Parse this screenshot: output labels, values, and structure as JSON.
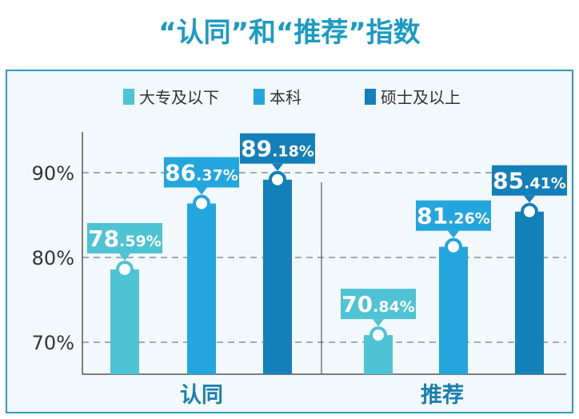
{
  "chart_data": {
    "type": "bar",
    "title": "“认同”和“推荐”指数",
    "categories": [
      "认同",
      "推荐"
    ],
    "series": [
      {
        "name": "大专及以下",
        "color": "#4dc3d3",
        "values": [
          78.59,
          70.84
        ]
      },
      {
        "name": "本科",
        "color": "#23a6dd",
        "values": [
          86.37,
          81.26
        ]
      },
      {
        "name": "硕士及以上",
        "color": "#1480b9",
        "values": [
          89.18,
          85.41
        ]
      }
    ],
    "value_labels": [
      [
        "78.59%",
        "70.84%"
      ],
      [
        "86.37%",
        "81.26%"
      ],
      [
        "89.18%",
        "85.41%"
      ]
    ],
    "yticks": [
      {
        "value": 70,
        "label": "70%"
      },
      {
        "value": 80,
        "label": "80%"
      },
      {
        "value": 90,
        "label": "90%"
      }
    ],
    "ylim": [
      67.5,
      92.5
    ],
    "grid": true,
    "legend_position": "top"
  }
}
